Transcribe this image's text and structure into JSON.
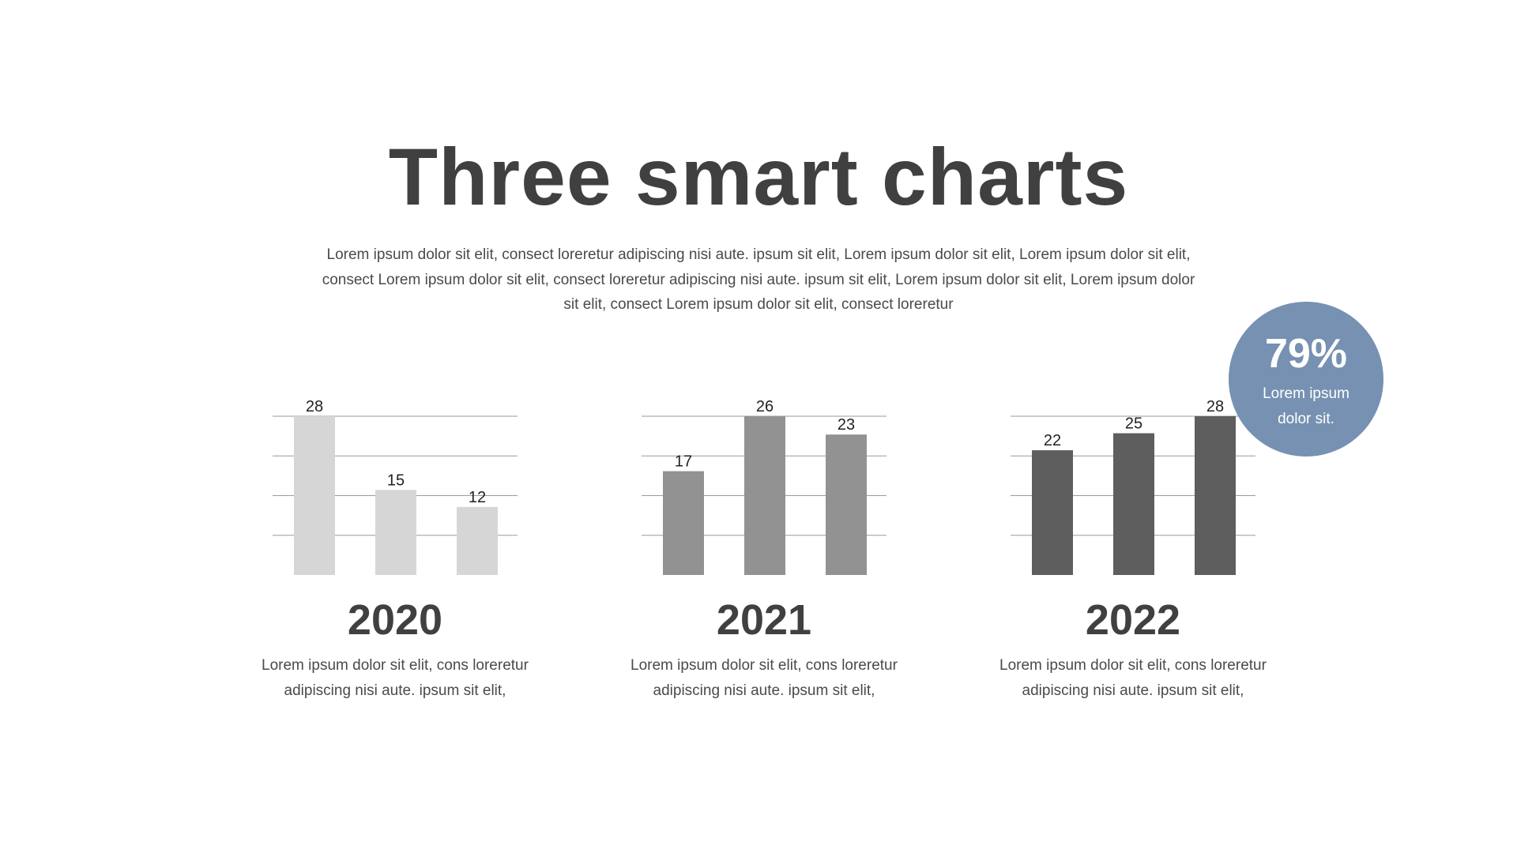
{
  "title": "Three smart charts",
  "intro": "Lorem ipsum dolor sit elit, consect loreretur adipiscing nisi aute. ipsum sit elit, Lorem ipsum dolor sit elit, Lorem ipsum dolor sit elit, consect Lorem ipsum dolor sit elit, consect loreretur adipiscing nisi aute. ipsum sit elit, Lorem ipsum dolor sit elit, Lorem ipsum dolor sit elit, consect Lorem ipsum dolor sit elit, consect loreretur",
  "badge": {
    "value": "79%",
    "label": "Lorem ipsum dolor sit.",
    "color": "#7691b2"
  },
  "chart_data": [
    {
      "type": "bar",
      "title": "2020",
      "values": [
        28,
        15,
        12
      ],
      "ylim": [
        0,
        28
      ],
      "grid": true,
      "color": "#d6d6d6",
      "description": "Lorem ipsum dolor sit elit, cons loreretur adipiscing nisi aute. ipsum sit elit,"
    },
    {
      "type": "bar",
      "title": "2021",
      "values": [
        17,
        26,
        23
      ],
      "ylim": [
        0,
        26
      ],
      "grid": true,
      "color": "#929292",
      "description": "Lorem ipsum dolor sit elit, cons loreretur adipiscing nisi aute. ipsum sit elit,"
    },
    {
      "type": "bar",
      "title": "2022",
      "values": [
        22,
        25,
        28
      ],
      "ylim": [
        0,
        28
      ],
      "grid": true,
      "color": "#5e5e5e",
      "description": "Lorem ipsum dolor sit elit, cons loreretur adipiscing nisi aute. ipsum sit elit,"
    }
  ]
}
